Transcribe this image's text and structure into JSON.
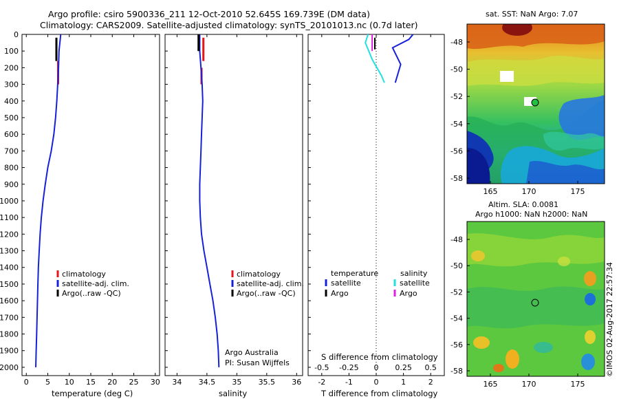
{
  "header": {
    "line1": "Argo profile: csiro 5900336_211 12-Oct-2010 52.645S 169.739E (DM data)",
    "line2": "Climatology: CARS2009. Satellite-adjusted climatology: synTS_20101013.nc (0.7d later)"
  },
  "depth_axis": {
    "ticks": [
      0,
      100,
      200,
      300,
      400,
      500,
      600,
      700,
      800,
      900,
      1000,
      1100,
      1200,
      1300,
      1400,
      1500,
      1600,
      1700,
      1800,
      1900,
      2000
    ],
    "ylim": [
      0,
      2050
    ]
  },
  "colors": {
    "climatology": "#e8141c",
    "satellite": "#1520d8",
    "argo": "#000000",
    "satellite_salinity": "#22e0e0",
    "argo_salinity": "#e020e0"
  },
  "chart_data": [
    {
      "type": "line",
      "panel": "temperature",
      "xlabel": "temperature (deg C)",
      "xlim": [
        -1,
        31
      ],
      "xticks": [
        0,
        5,
        10,
        15,
        20,
        25,
        30
      ],
      "series": [
        {
          "name": "climatology",
          "points": [
            [
              7.4,
              160
            ],
            [
              7.4,
              300
            ]
          ]
        },
        {
          "name": "satellite-adj. clim.",
          "points": [
            [
              8.0,
              0
            ],
            [
              7.6,
              100
            ],
            [
              7.5,
              200
            ],
            [
              7.3,
              300
            ],
            [
              7.1,
              400
            ],
            [
              6.8,
              500
            ],
            [
              6.4,
              600
            ],
            [
              5.8,
              700
            ],
            [
              5.0,
              800
            ],
            [
              4.4,
              900
            ],
            [
              3.9,
              1000
            ],
            [
              3.5,
              1100
            ],
            [
              3.2,
              1200
            ],
            [
              3.0,
              1300
            ],
            [
              2.8,
              1400
            ],
            [
              2.7,
              1500
            ],
            [
              2.6,
              1600
            ],
            [
              2.5,
              1700
            ],
            [
              2.4,
              1800
            ],
            [
              2.3,
              1900
            ],
            [
              2.2,
              2000
            ]
          ]
        },
        {
          "name": "Argo(..raw -QC)",
          "points": [
            [
              7.0,
              20
            ],
            [
              7.0,
              160
            ]
          ]
        }
      ],
      "legend": [
        "climatology",
        "satellite-adj. clim.",
        "Argo(..raw -QC)"
      ]
    },
    {
      "type": "line",
      "panel": "salinity",
      "xlabel": "salinity",
      "xlim": [
        33.8,
        36.1
      ],
      "xticks": [
        34,
        34.5,
        35,
        35.5,
        36
      ],
      "xtick_labels": [
        "34",
        "34.5",
        "35",
        "35.5",
        "36"
      ],
      "series": [
        {
          "name": "climatology",
          "points": [
            [
              34.44,
              20
            ],
            [
              34.44,
              160
            ]
          ],
          "points2": [
            [
              34.41,
              200
            ],
            [
              34.41,
              300
            ]
          ]
        },
        {
          "name": "satellite-adj. clim.",
          "points": [
            [
              34.38,
              0
            ],
            [
              34.38,
              100
            ],
            [
              34.4,
              200
            ],
            [
              34.42,
              300
            ],
            [
              34.43,
              400
            ],
            [
              34.42,
              500
            ],
            [
              34.41,
              600
            ],
            [
              34.4,
              700
            ],
            [
              34.39,
              800
            ],
            [
              34.38,
              900
            ],
            [
              34.38,
              1000
            ],
            [
              34.39,
              1100
            ],
            [
              34.41,
              1200
            ],
            [
              34.45,
              1300
            ],
            [
              34.5,
              1400
            ],
            [
              34.55,
              1500
            ],
            [
              34.6,
              1600
            ],
            [
              34.64,
              1700
            ],
            [
              34.67,
              1800
            ],
            [
              34.69,
              1900
            ],
            [
              34.7,
              2000
            ]
          ]
        },
        {
          "name": "Argo(..raw -QC)",
          "points": [
            [
              34.36,
              0
            ],
            [
              34.36,
              100
            ]
          ]
        }
      ],
      "legend": [
        "climatology",
        "satellite-adj. clim.",
        "Argo(..raw -QC)"
      ],
      "annotation": [
        "Argo Australia",
        "PI: Susan Wijffels"
      ]
    },
    {
      "type": "line",
      "panel": "difference",
      "xlabel": "T difference from climatology",
      "xlabel_top": "S difference from climatology",
      "xlim": [
        -2.5,
        2.5
      ],
      "xticks": [
        -2,
        -1,
        0,
        1,
        2
      ],
      "s_ticks": [
        "-0.5",
        "-0.25",
        "0",
        "0.25",
        "0.5"
      ],
      "series": [
        {
          "name": "temperature satellite",
          "points": [
            [
              1.35,
              0
            ],
            [
              1.2,
              30
            ],
            [
              0.6,
              80
            ],
            [
              0.9,
              180
            ],
            [
              0.7,
              290
            ]
          ]
        },
        {
          "name": "temperature Argo",
          "points": [
            [
              -0.05,
              20
            ],
            [
              -0.05,
              90
            ]
          ]
        },
        {
          "name": "salinity satellite",
          "points": [
            [
              -0.3,
              0
            ],
            [
              -0.4,
              50
            ],
            [
              -0.15,
              150
            ],
            [
              0.2,
              250
            ],
            [
              0.3,
              290
            ]
          ]
        },
        {
          "name": "salinity Argo",
          "points": [
            [
              -0.15,
              0
            ],
            [
              -0.15,
              100
            ]
          ]
        }
      ],
      "legend_headers": [
        "temperature",
        "salinity"
      ],
      "legend_items": [
        "satellite",
        "Argo",
        "satellite",
        "Argo"
      ]
    }
  ],
  "maps": {
    "sst": {
      "title": "sat. SST: NaN Argo: 7.07",
      "yticks": [
        "-48",
        "-50",
        "-52",
        "-54",
        "-56",
        "-58"
      ],
      "xticks": [
        "165",
        "170",
        "175"
      ]
    },
    "sla": {
      "title1": "Altim. SLA: 0.0081",
      "title2": "Argo h1000: NaN h2000: NaN",
      "yticks": [
        "-48",
        "-50",
        "-52",
        "-54",
        "-56",
        "-58"
      ],
      "xticks": [
        "165",
        "170",
        "175"
      ]
    }
  },
  "footer": {
    "stamp": "©IMOS 02-Aug-2017 22:57:34"
  }
}
